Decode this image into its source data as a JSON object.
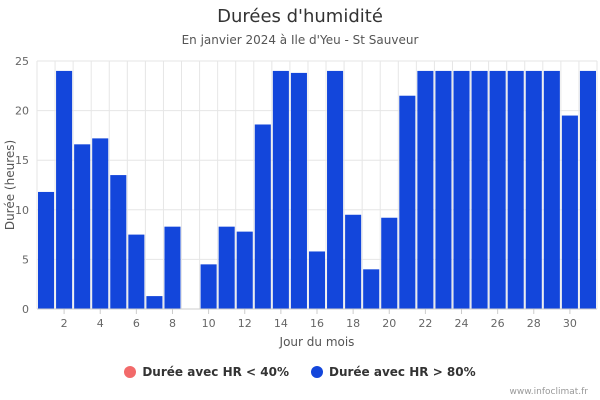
{
  "colors": {
    "lt40": "#f26a6a",
    "gt80": "#1346db",
    "grid": "#e6e6e6"
  },
  "chart_data": {
    "type": "bar",
    "title": "Durées d'humidité",
    "subtitle": "En janvier 2024 à Ile d'Yeu - St Sauveur",
    "xlabel": "Jour du mois",
    "ylabel": "Durée (heures)",
    "ylim": [
      0,
      25
    ],
    "yticks": [
      "0",
      "5",
      "10",
      "15",
      "20",
      "25"
    ],
    "xticks": [
      "2",
      "4",
      "6",
      "8",
      "10",
      "12",
      "14",
      "16",
      "18",
      "20",
      "22",
      "24",
      "26",
      "28",
      "30"
    ],
    "categories": [
      1,
      2,
      3,
      4,
      5,
      6,
      7,
      8,
      9,
      10,
      11,
      12,
      13,
      14,
      15,
      16,
      17,
      18,
      19,
      20,
      21,
      22,
      23,
      24,
      25,
      26,
      27,
      28,
      29,
      30,
      31
    ],
    "grid": true,
    "legend_position": "bottom",
    "series": [
      {
        "name": "Durée avec HR < 40%",
        "color": "#f26a6a",
        "values": [
          0,
          0,
          0,
          0,
          0,
          0,
          0,
          0,
          0,
          0,
          0,
          0,
          0,
          0,
          0,
          0,
          0,
          0,
          0,
          0,
          0,
          0,
          0,
          0,
          0,
          0,
          0,
          0,
          0,
          0,
          0
        ]
      },
      {
        "name": "Durée avec HR > 80%",
        "color": "#1346db",
        "values": [
          11.8,
          24,
          16.6,
          17.2,
          13.5,
          7.5,
          1.3,
          8.3,
          0,
          4.5,
          8.3,
          7.8,
          18.6,
          24,
          23.8,
          5.8,
          24,
          9.5,
          4,
          9.2,
          21.5,
          24,
          24,
          24,
          24,
          24,
          24,
          24,
          24,
          19.5,
          24
        ]
      }
    ]
  },
  "legend": {
    "item1": "Durée avec HR < 40%",
    "item2": "Durée avec HR > 80%"
  },
  "credit": "www.infoclimat.fr"
}
